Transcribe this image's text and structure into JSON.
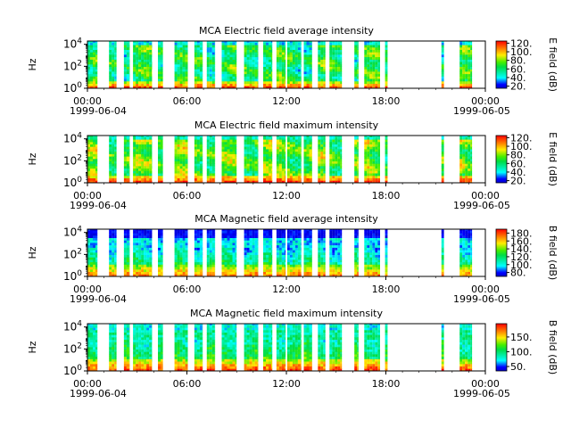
{
  "chart_data": [
    {
      "type": "heatmap",
      "title": "MCA  Electric field average intensity",
      "ylabel": "Hz",
      "ytick_labels": [
        "10^0",
        "10^2",
        "10^4"
      ],
      "yscale": "log",
      "ylim": [
        1,
        20000
      ],
      "xlim": [
        "1999-06-04 00:00",
        "1999-06-05 00:00"
      ],
      "xtick_labels": [
        "00:00",
        "06:00",
        "12:00",
        "18:00",
        "00:00"
      ],
      "xtick_dates": [
        "1999-06-04",
        "1999-06-05"
      ],
      "colorbar_label": "E field (dB)",
      "colorbar_ticks": [
        "20.",
        "40.",
        "60.",
        "80.",
        "100.",
        "120."
      ],
      "colorbar_range": [
        15,
        125
      ],
      "colormap": "rainbow",
      "data_intervals_hours": [
        [
          -0.1,
          0.6
        ],
        [
          1.3,
          1.75
        ],
        [
          2.2,
          2.55
        ],
        [
          2.75,
          3.9
        ],
        [
          4.25,
          4.55
        ],
        [
          5.25,
          6.05
        ],
        [
          6.45,
          6.95
        ],
        [
          7.2,
          7.7
        ],
        [
          8.1,
          9.0
        ],
        [
          9.45,
          10.3
        ],
        [
          10.6,
          11.15
        ],
        [
          11.4,
          11.95
        ],
        [
          12.05,
          12.9
        ],
        [
          13.05,
          13.55
        ],
        [
          13.9,
          14.35
        ],
        [
          14.6,
          15.35
        ],
        [
          16.1,
          16.35
        ],
        [
          16.7,
          17.65
        ],
        [
          17.95,
          18.1
        ],
        [
          21.35,
          21.5
        ],
        [
          22.45,
          23.2
        ]
      ]
    },
    {
      "type": "heatmap",
      "title": "MCA  Electric field maximum intensity",
      "ylabel": "Hz",
      "ytick_labels": [
        "10^0",
        "10^2",
        "10^4"
      ],
      "yscale": "log",
      "ylim": [
        1,
        20000
      ],
      "xlim": [
        "1999-06-04 00:00",
        "1999-06-05 00:00"
      ],
      "xtick_labels": [
        "00:00",
        "06:00",
        "12:00",
        "18:00",
        "00:00"
      ],
      "xtick_dates": [
        "1999-06-04",
        "1999-06-05"
      ],
      "colorbar_label": "E field (dB)",
      "colorbar_ticks": [
        "20.",
        "40.",
        "60.",
        "80.",
        "100.",
        "120."
      ],
      "colorbar_range": [
        15,
        125
      ],
      "colormap": "rainbow",
      "data_intervals_hours": [
        [
          -0.1,
          0.6
        ],
        [
          1.3,
          1.75
        ],
        [
          2.2,
          2.55
        ],
        [
          2.75,
          3.9
        ],
        [
          4.25,
          4.55
        ],
        [
          5.25,
          6.05
        ],
        [
          6.45,
          6.95
        ],
        [
          7.2,
          7.7
        ],
        [
          8.1,
          9.0
        ],
        [
          9.45,
          10.3
        ],
        [
          10.6,
          11.15
        ],
        [
          11.4,
          11.95
        ],
        [
          12.05,
          12.9
        ],
        [
          13.05,
          13.55
        ],
        [
          13.9,
          14.35
        ],
        [
          14.6,
          15.35
        ],
        [
          16.1,
          16.35
        ],
        [
          16.7,
          17.65
        ],
        [
          17.95,
          18.1
        ],
        [
          21.35,
          21.5
        ],
        [
          22.45,
          23.2
        ]
      ]
    },
    {
      "type": "heatmap",
      "title": "MCA  Magnetic field average intensity",
      "ylabel": "Hz",
      "ytick_labels": [
        "10^0",
        "10^2",
        "10^4"
      ],
      "yscale": "log",
      "ylim": [
        1,
        20000
      ],
      "xlim": [
        "1999-06-04 00:00",
        "1999-06-05 00:00"
      ],
      "xtick_labels": [
        "00:00",
        "06:00",
        "12:00",
        "18:00",
        "00:00"
      ],
      "xtick_dates": [
        "1999-06-04",
        "1999-06-05"
      ],
      "colorbar_label": "B field (dB)",
      "colorbar_ticks": [
        "80.",
        "100.",
        "120.",
        "140.",
        "160.",
        "180."
      ],
      "colorbar_range": [
        70,
        190
      ],
      "colormap": "rainbow",
      "data_intervals_hours": [
        [
          -0.1,
          0.6
        ],
        [
          1.3,
          1.75
        ],
        [
          2.2,
          2.55
        ],
        [
          2.75,
          3.9
        ],
        [
          4.25,
          4.55
        ],
        [
          5.25,
          6.05
        ],
        [
          6.45,
          6.95
        ],
        [
          7.2,
          7.7
        ],
        [
          8.1,
          9.0
        ],
        [
          9.45,
          10.3
        ],
        [
          10.6,
          11.15
        ],
        [
          11.4,
          11.95
        ],
        [
          12.05,
          12.9
        ],
        [
          13.05,
          13.55
        ],
        [
          13.9,
          14.35
        ],
        [
          14.6,
          15.35
        ],
        [
          16.1,
          16.35
        ],
        [
          16.7,
          17.65
        ],
        [
          17.95,
          18.1
        ],
        [
          21.35,
          21.5
        ],
        [
          22.45,
          23.2
        ]
      ]
    },
    {
      "type": "heatmap",
      "title": "MCA  Magnetic field maximum intensity",
      "ylabel": "Hz",
      "ytick_labels": [
        "10^0",
        "10^2",
        "10^4"
      ],
      "yscale": "log",
      "ylim": [
        1,
        20000
      ],
      "xlim": [
        "1999-06-04 00:00",
        "1999-06-05 00:00"
      ],
      "xtick_labels": [
        "00:00",
        "06:00",
        "12:00",
        "18:00",
        "00:00"
      ],
      "xtick_dates": [
        "1999-06-04",
        "1999-06-05"
      ],
      "colorbar_label": "B field (dB)",
      "colorbar_ticks": [
        "50.",
        "100.",
        "150."
      ],
      "colorbar_range": [
        35,
        195
      ],
      "colormap": "rainbow",
      "data_intervals_hours": [
        [
          -0.1,
          0.6
        ],
        [
          1.3,
          1.75
        ],
        [
          2.2,
          2.55
        ],
        [
          2.75,
          3.9
        ],
        [
          4.25,
          4.55
        ],
        [
          5.25,
          6.05
        ],
        [
          6.45,
          6.95
        ],
        [
          7.2,
          7.7
        ],
        [
          8.1,
          9.0
        ],
        [
          9.45,
          10.3
        ],
        [
          10.6,
          11.15
        ],
        [
          11.4,
          11.95
        ],
        [
          12.05,
          12.9
        ],
        [
          13.05,
          13.55
        ],
        [
          13.9,
          14.35
        ],
        [
          14.6,
          15.35
        ],
        [
          16.1,
          16.35
        ],
        [
          16.7,
          17.65
        ],
        [
          17.95,
          18.1
        ],
        [
          21.35,
          21.5
        ],
        [
          22.45,
          23.2
        ]
      ]
    }
  ]
}
